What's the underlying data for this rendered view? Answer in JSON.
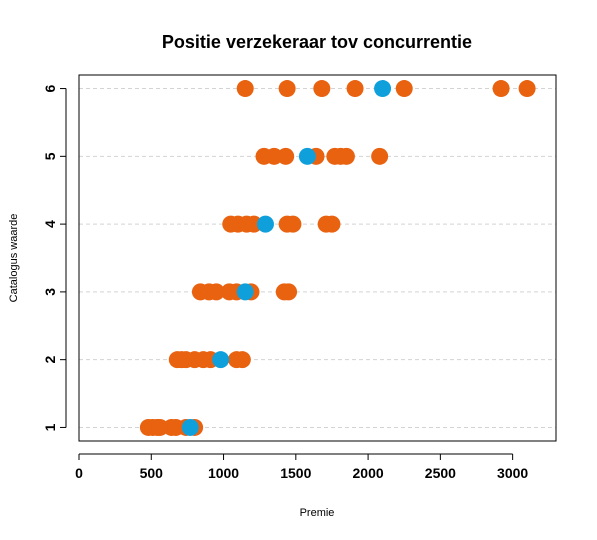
{
  "chart_data": {
    "type": "scatter",
    "title": "Positie verzekeraar tov concurrentie",
    "xlabel": "Premie",
    "ylabel": "Catalogus waarde",
    "xlim": [
      0,
      3300
    ],
    "ylim": [
      0.8,
      6.2
    ],
    "xticks": [
      0,
      500,
      1000,
      1500,
      2000,
      2500,
      3000
    ],
    "yticks": [
      1,
      2,
      3,
      4,
      5,
      6
    ],
    "grid": "horizontal dashed at y ticks",
    "series": [
      {
        "color": "#E8620F",
        "points": [
          {
            "x": 480,
            "y": 1
          },
          {
            "x": 510,
            "y": 1
          },
          {
            "x": 540,
            "y": 1
          },
          {
            "x": 560,
            "y": 1
          },
          {
            "x": 640,
            "y": 1
          },
          {
            "x": 670,
            "y": 1
          },
          {
            "x": 740,
            "y": 1
          },
          {
            "x": 800,
            "y": 1
          },
          {
            "x": 680,
            "y": 2
          },
          {
            "x": 710,
            "y": 2
          },
          {
            "x": 740,
            "y": 2
          },
          {
            "x": 800,
            "y": 2
          },
          {
            "x": 860,
            "y": 2
          },
          {
            "x": 910,
            "y": 2
          },
          {
            "x": 1090,
            "y": 2
          },
          {
            "x": 1130,
            "y": 2
          },
          {
            "x": 840,
            "y": 3
          },
          {
            "x": 900,
            "y": 3
          },
          {
            "x": 950,
            "y": 3
          },
          {
            "x": 1040,
            "y": 3
          },
          {
            "x": 1090,
            "y": 3
          },
          {
            "x": 1190,
            "y": 3
          },
          {
            "x": 1420,
            "y": 3
          },
          {
            "x": 1450,
            "y": 3
          },
          {
            "x": 1050,
            "y": 4
          },
          {
            "x": 1100,
            "y": 4
          },
          {
            "x": 1160,
            "y": 4
          },
          {
            "x": 1210,
            "y": 4
          },
          {
            "x": 1440,
            "y": 4
          },
          {
            "x": 1480,
            "y": 4
          },
          {
            "x": 1710,
            "y": 4
          },
          {
            "x": 1750,
            "y": 4
          },
          {
            "x": 1280,
            "y": 5
          },
          {
            "x": 1350,
            "y": 5
          },
          {
            "x": 1430,
            "y": 5
          },
          {
            "x": 1640,
            "y": 5
          },
          {
            "x": 1770,
            "y": 5
          },
          {
            "x": 1810,
            "y": 5
          },
          {
            "x": 1850,
            "y": 5
          },
          {
            "x": 2080,
            "y": 5
          },
          {
            "x": 1150,
            "y": 6
          },
          {
            "x": 1440,
            "y": 6
          },
          {
            "x": 1680,
            "y": 6
          },
          {
            "x": 1910,
            "y": 6
          },
          {
            "x": 2250,
            "y": 6
          },
          {
            "x": 2920,
            "y": 6
          },
          {
            "x": 3100,
            "y": 6
          }
        ]
      },
      {
        "color": "#0FA0DC",
        "points": [
          {
            "x": 770,
            "y": 1
          },
          {
            "x": 980,
            "y": 2
          },
          {
            "x": 1150,
            "y": 3
          },
          {
            "x": 1290,
            "y": 4
          },
          {
            "x": 1580,
            "y": 5
          },
          {
            "x": 2100,
            "y": 6
          }
        ]
      }
    ]
  }
}
